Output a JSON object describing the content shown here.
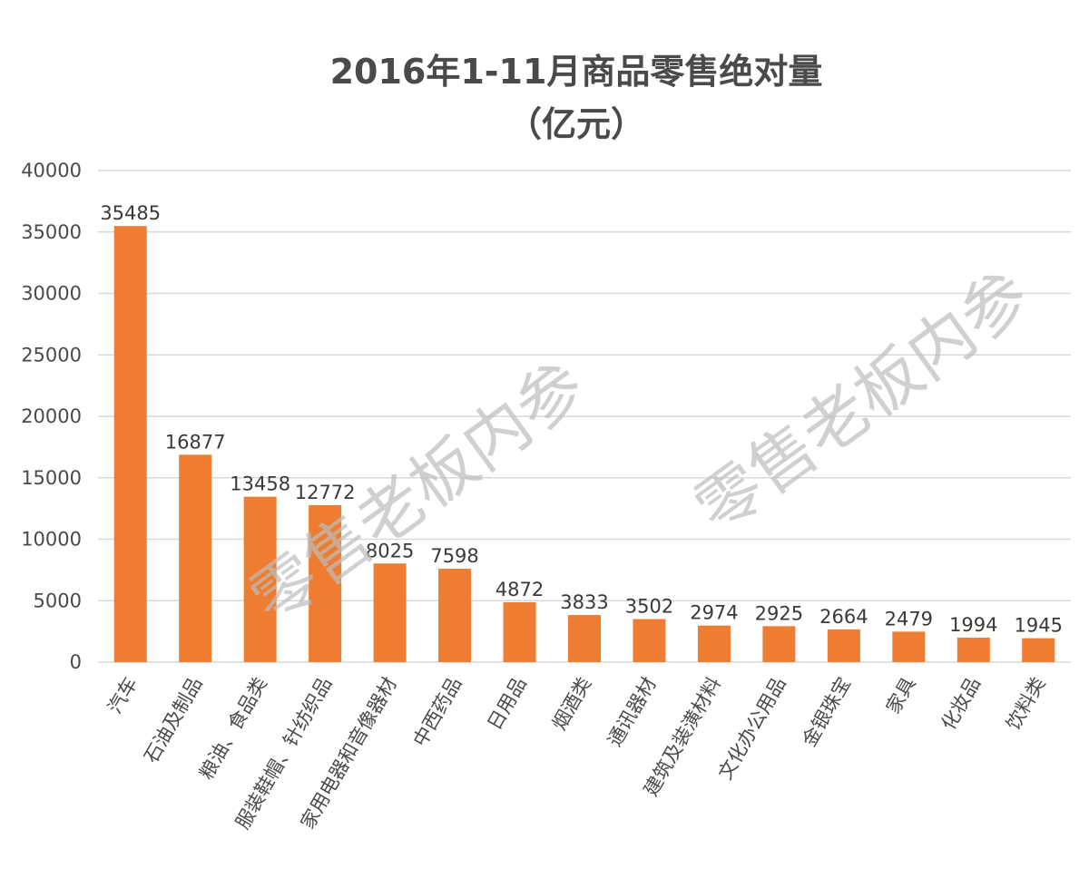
{
  "chart_data": {
    "type": "bar",
    "title": "2016年1-11月商品零售绝对量",
    "subtitle": "（亿元）",
    "xlabel": "",
    "ylabel": "",
    "ylim": [
      0,
      40000
    ],
    "yticks": [
      0,
      5000,
      10000,
      15000,
      20000,
      25000,
      30000,
      35000,
      40000
    ],
    "grid": true,
    "legend": "none",
    "bar_color": "#ee7d31",
    "categories": [
      "汽车",
      "石油及制品",
      "粮油、食品类",
      "服装鞋帽、针纺织品",
      "家用电器和音像器材",
      "中西药品",
      "日用品",
      "烟酒类",
      "通讯器材",
      "建筑及装潢材料",
      "文化办公用品",
      "金银珠宝",
      "家具",
      "化妆品",
      "饮料类"
    ],
    "values": [
      35485,
      16877,
      13458,
      12772,
      8025,
      7598,
      4872,
      3833,
      3502,
      2974,
      2925,
      2664,
      2479,
      1994,
      1945
    ]
  },
  "watermarks": [
    "零售老板内参",
    "零售老板内参"
  ]
}
